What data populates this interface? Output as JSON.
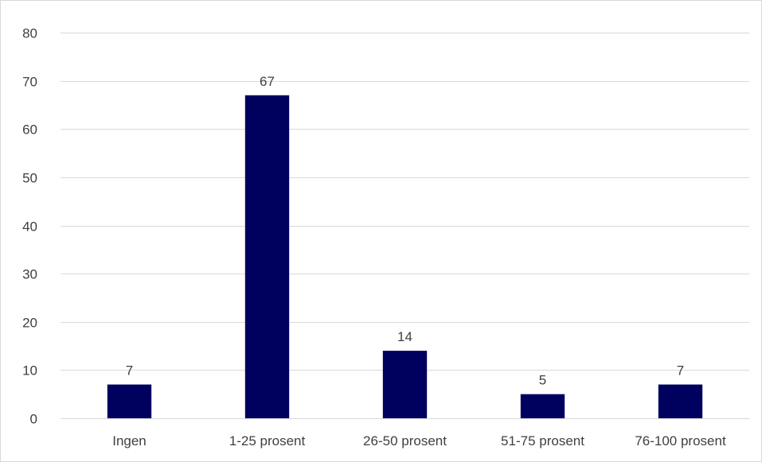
{
  "chart_data": {
    "type": "bar",
    "title": "",
    "xlabel": "",
    "ylabel": "",
    "categories": [
      "Ingen",
      "1-25 prosent",
      "26-50 prosent",
      "51-75 prosent",
      "76-100 prosent"
    ],
    "values": [
      7,
      67,
      14,
      5,
      7
    ],
    "data_labels": [
      "7",
      "67",
      "14",
      "5",
      "7"
    ],
    "ylim": [
      0,
      80
    ],
    "yticks": [
      0,
      10,
      20,
      30,
      40,
      50,
      60,
      70,
      80
    ],
    "ytick_labels": [
      "0",
      "10",
      "20",
      "30",
      "40",
      "50",
      "60",
      "70",
      "80"
    ],
    "grid": true,
    "legend": "none",
    "bar_color": "#00005f"
  }
}
